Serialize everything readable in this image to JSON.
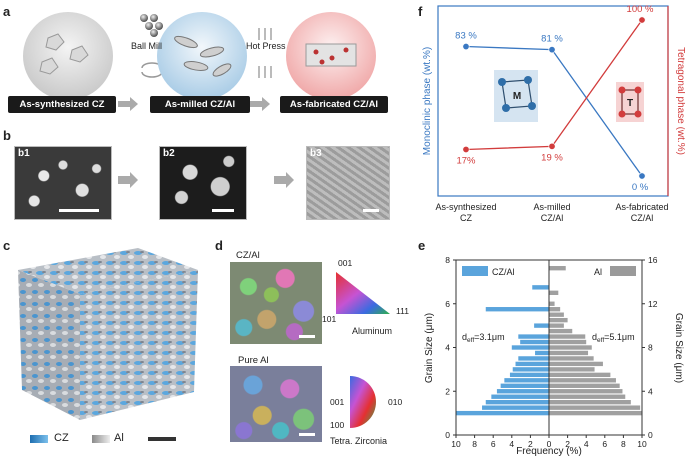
{
  "panel_labels": {
    "a": "a",
    "b": "b",
    "c": "c",
    "d": "d",
    "e": "e",
    "f": "f"
  },
  "panel_a": {
    "stage1": "As-synthesized CZ",
    "stage2": "As-milled CZ/Al",
    "stage3": "As-fabricated CZ/Al",
    "step1": "Ball Mill",
    "step2": "Hot Press"
  },
  "panel_b": {
    "b1": "b1",
    "b2": "b2",
    "b3": "b3"
  },
  "panel_c": {
    "legend_cz": "CZ",
    "legend_al": "Al"
  },
  "panel_d": {
    "top_title": "CZ/Al",
    "bottom_title": "Pure Al",
    "ipf1_001": "001",
    "ipf1_101": "101",
    "ipf1_111": "111",
    "ipf1_name": "Aluminum",
    "ipf2_001": "001",
    "ipf2_010": "010",
    "ipf2_100": "100",
    "ipf2_name": "Tetra. Zirconia"
  },
  "colors": {
    "blue": "#3a78c2",
    "red": "#d23c3c",
    "cz_bar": "#5aa4dc",
    "al_bar": "#9a9a9a"
  },
  "chart_data": [
    {
      "type": "line",
      "panel": "f",
      "categories": [
        "As-synthesized\nCZ",
        "As-milled\nCZ/Al",
        "As-fabricated\nCZ/Al"
      ],
      "category_lines": [
        [
          "As-synthesized",
          "CZ"
        ],
        [
          "As-milled",
          "CZ/Al"
        ],
        [
          "As-fabricated",
          "CZ/Al"
        ]
      ],
      "series": [
        {
          "name": "Monoclinic phase",
          "values": [
            83,
            81,
            0
          ],
          "labels": [
            "83 %",
            "81 %",
            "0 %"
          ],
          "color": "#3a78c2"
        },
        {
          "name": "Tetragonal phase",
          "values": [
            17,
            19,
            100
          ],
          "labels": [
            "17%",
            "19 %",
            "100 %"
          ],
          "color": "#d23c3c"
        }
      ],
      "ylabel_left": "Monoclinic phase (wt.%)",
      "ylabel_right": "Tetragonal phase (wt.%)",
      "ylim": [
        0,
        100
      ],
      "insets": {
        "monoclinic": "M",
        "tetragonal": "T"
      }
    },
    {
      "type": "bar",
      "panel": "e",
      "orientation": "horizontal-back-to-back",
      "xlabel": "Frequency (%)",
      "ylabel_left": "Grain Size (μm)",
      "ylabel_right": "Grain Size (μm)",
      "xticks": [
        "10",
        "8",
        "6",
        "4",
        "2",
        "0",
        "2",
        "4",
        "6",
        "8",
        "10"
      ],
      "yticks_left": [
        "0",
        "2",
        "4",
        "6",
        "8"
      ],
      "yticks_right": [
        "0",
        "4",
        "8",
        "12",
        "16"
      ],
      "ylim_left": [
        0,
        8
      ],
      "ylim_right": [
        0,
        16
      ],
      "legend_left": "CZ/Al",
      "legend_right": "Al",
      "annot_left_pre": "d",
      "annot_left_sub": "eff",
      "annot_left_post": "=3.1μm",
      "annot_right_pre": "d",
      "annot_right_sub": "eff",
      "annot_right_post": "=5.1μm",
      "series": [
        {
          "name": "CZ/Al",
          "bin_width": 0.25,
          "centers": [
            1.0,
            1.25,
            1.5,
            1.75,
            2.0,
            2.25,
            2.5,
            2.75,
            3.0,
            3.25,
            3.5,
            3.75,
            4.0,
            4.25,
            4.5,
            5.0,
            5.75,
            6.75
          ],
          "values": [
            10,
            7.2,
            6.8,
            6.2,
            5.6,
            5.2,
            4.8,
            4.2,
            3.9,
            3.6,
            3.3,
            1.5,
            4,
            3.1,
            3.3,
            1.6,
            6.8,
            1.8
          ]
        },
        {
          "name": "Al",
          "bin_width": 0.5,
          "centers": [
            2.0,
            2.5,
            3.0,
            3.5,
            4.0,
            4.5,
            5.0,
            5.5,
            6.0,
            6.5,
            7.0,
            7.5,
            8.0,
            8.5,
            9.0,
            9.5,
            10.0,
            10.5,
            11.0,
            11.5,
            12.0,
            12.5,
            13.0,
            13.5,
            15.25
          ],
          "values": [
            10,
            9.8,
            8.8,
            8.2,
            7.9,
            7.6,
            7.2,
            6.6,
            4.9,
            5.8,
            4.8,
            4.2,
            4.6,
            4.0,
            3.9,
            2.5,
            1.6,
            2.0,
            1.6,
            1.2,
            0.6,
            0,
            1.0,
            0,
            1.8
          ]
        }
      ]
    }
  ]
}
